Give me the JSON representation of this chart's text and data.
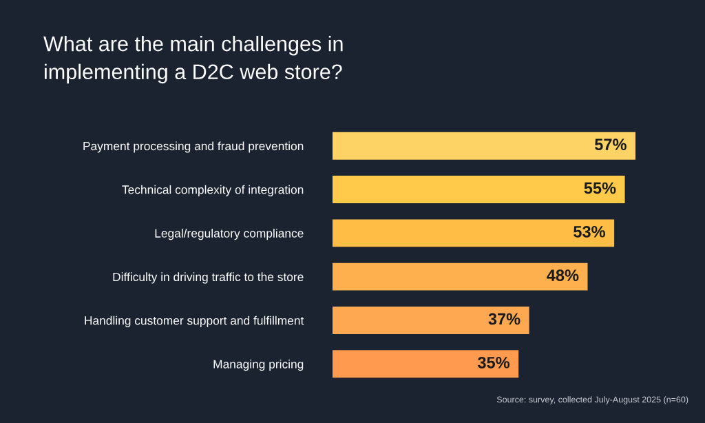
{
  "chart_data": {
    "type": "bar",
    "orientation": "horizontal",
    "title": "What are the main challenges in\nimplementing a D2C web store?",
    "categories": [
      "Payment processing and fraud prevention",
      "Technical complexity of integration",
      "Legal/regulatory compliance",
      "Difficulty in driving traffic to the store",
      "Handling customer support and fulfillment",
      "Managing pricing"
    ],
    "values": [
      57,
      55,
      53,
      48,
      37,
      35
    ],
    "colors": [
      "#fdd366",
      "#ffca4a",
      "#ffbd45",
      "#ffb04e",
      "#ffa852",
      "#ff9a4e"
    ],
    "value_labels": [
      "57%",
      "55%",
      "53%",
      "48%",
      "37%",
      "35%"
    ],
    "tick_labels": "y",
    "annotations": [
      "Source: survey, collected July-August 2025 (n=60)"
    ]
  }
}
